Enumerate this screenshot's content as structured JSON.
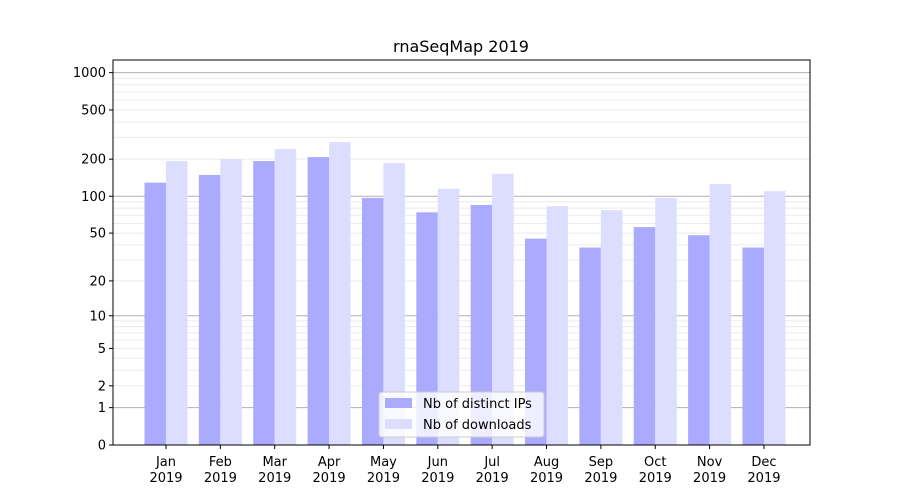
{
  "chart_data": {
    "type": "bar",
    "title": "rnaSeqMap 2019",
    "xlabel": "",
    "ylabel": "",
    "yscale": "log(1+y)",
    "ylim": [
      0,
      1300
    ],
    "yticks": [
      0,
      1,
      2,
      5,
      10,
      20,
      50,
      100,
      200,
      500,
      1000
    ],
    "grid": true,
    "legend_position": "bottom-center",
    "categories": [
      "Jan\n2019",
      "Feb\n2019",
      "Mar\n2019",
      "Apr\n2019",
      "May\n2019",
      "Jun\n2019",
      "Jul\n2019",
      "Aug\n2019",
      "Sep\n2019",
      "Oct\n2019",
      "Nov\n2019",
      "Dec\n2019"
    ],
    "series": [
      {
        "name": "Nb of distinct IPs",
        "color": "#aaaaff",
        "values": [
          129,
          149,
          193,
          208,
          97,
          74,
          85,
          45,
          38,
          56,
          48,
          38
        ]
      },
      {
        "name": "Nb of downloads",
        "color": "#ddddff",
        "values": [
          193,
          200,
          242,
          275,
          186,
          115,
          152,
          83,
          77,
          97,
          126,
          110
        ]
      }
    ]
  }
}
